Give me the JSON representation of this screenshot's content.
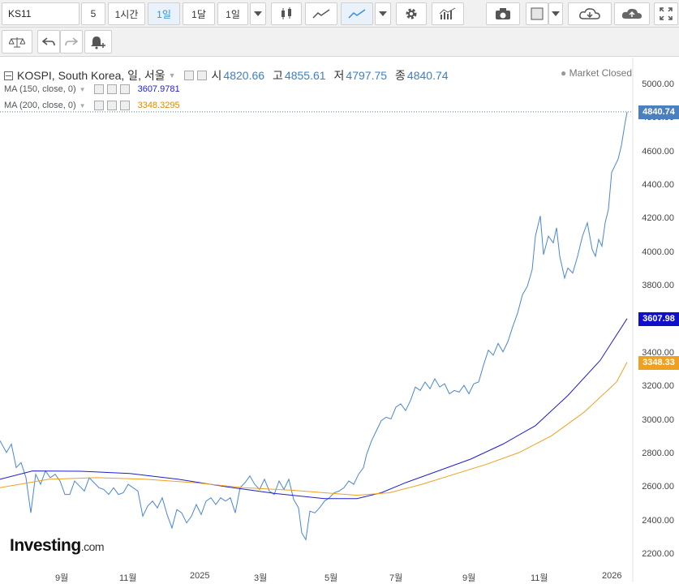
{
  "toolbar": {
    "symbol": "KS11",
    "intervals": [
      "5",
      "1시간",
      "1일",
      "1달",
      "1일"
    ],
    "active_interval": "1일"
  },
  "legend": {
    "title": "KOSPI, South Korea, 일, 서울",
    "open_label": "시",
    "open": "4820.66",
    "high_label": "고",
    "high": "4855.61",
    "low_label": "저",
    "low": "4797.75",
    "close_label": "종",
    "close": "4840.74",
    "ma150_label": "MA (150, close, 0)",
    "ma150_value": "3607.9781",
    "ma200_label": "MA (200, close, 0)",
    "ma200_value": "3348.3295",
    "market_status": "Market Closed"
  },
  "axis": {
    "y_labels": [
      "5000.00",
      "4800.00",
      "4600.00",
      "4400.00",
      "4200.00",
      "4000.00",
      "3800.00",
      "3600.00",
      "3400.00",
      "3200.00",
      "3000.00",
      "2800.00",
      "2600.00",
      "2400.00",
      "2200.00"
    ],
    "x_labels": [
      "9월",
      "11월",
      "2025",
      "3월",
      "5월",
      "7월",
      "9월",
      "11월",
      "2026"
    ]
  },
  "tags": {
    "price": "4840.74",
    "ma150": "3607.98",
    "ma200": "3348.33"
  },
  "colors": {
    "price": "#4a86d6",
    "ma150": "#1f1fcc",
    "ma200": "#f0a020",
    "tag_price": "#4a7fc0",
    "tag_ma150": "#1010cc",
    "tag_ma200": "#f0a020"
  },
  "chart_data": {
    "type": "line",
    "ylim": [
      2150,
      5100
    ],
    "series": [
      {
        "name": "KOSPI",
        "points": [
          [
            0,
            2880
          ],
          [
            8,
            2810
          ],
          [
            14,
            2860
          ],
          [
            20,
            2720
          ],
          [
            26,
            2750
          ],
          [
            32,
            2660
          ],
          [
            38,
            2450
          ],
          [
            44,
            2680
          ],
          [
            50,
            2620
          ],
          [
            56,
            2700
          ],
          [
            62,
            2660
          ],
          [
            68,
            2680
          ],
          [
            74,
            2640
          ],
          [
            80,
            2560
          ],
          [
            86,
            2560
          ],
          [
            92,
            2640
          ],
          [
            98,
            2610
          ],
          [
            104,
            2580
          ],
          [
            110,
            2660
          ],
          [
            116,
            2630
          ],
          [
            122,
            2600
          ],
          [
            128,
            2590
          ],
          [
            134,
            2560
          ],
          [
            140,
            2600
          ],
          [
            146,
            2560
          ],
          [
            152,
            2570
          ],
          [
            158,
            2620
          ],
          [
            164,
            2600
          ],
          [
            170,
            2580
          ],
          [
            176,
            2430
          ],
          [
            182,
            2490
          ],
          [
            188,
            2520
          ],
          [
            194,
            2480
          ],
          [
            200,
            2540
          ],
          [
            206,
            2440
          ],
          [
            212,
            2360
          ],
          [
            218,
            2470
          ],
          [
            224,
            2450
          ],
          [
            230,
            2390
          ],
          [
            236,
            2430
          ],
          [
            242,
            2500
          ],
          [
            248,
            2440
          ],
          [
            254,
            2520
          ],
          [
            260,
            2540
          ],
          [
            266,
            2500
          ],
          [
            272,
            2540
          ],
          [
            278,
            2520
          ],
          [
            284,
            2540
          ],
          [
            290,
            2450
          ],
          [
            296,
            2600
          ],
          [
            302,
            2630
          ],
          [
            308,
            2670
          ],
          [
            314,
            2620
          ],
          [
            320,
            2590
          ],
          [
            326,
            2650
          ],
          [
            332,
            2580
          ],
          [
            338,
            2560
          ],
          [
            344,
            2640
          ],
          [
            350,
            2590
          ],
          [
            356,
            2650
          ],
          [
            362,
            2530
          ],
          [
            368,
            2480
          ],
          [
            372,
            2330
          ],
          [
            377,
            2290
          ],
          [
            382,
            2460
          ],
          [
            388,
            2450
          ],
          [
            394,
            2480
          ],
          [
            400,
            2520
          ],
          [
            406,
            2540
          ],
          [
            412,
            2570
          ],
          [
            418,
            2580
          ],
          [
            424,
            2600
          ],
          [
            430,
            2640
          ],
          [
            436,
            2620
          ],
          [
            442,
            2680
          ],
          [
            448,
            2720
          ],
          [
            452,
            2800
          ],
          [
            458,
            2880
          ],
          [
            464,
            2940
          ],
          [
            470,
            3000
          ],
          [
            476,
            3020
          ],
          [
            482,
            3010
          ],
          [
            488,
            3080
          ],
          [
            494,
            3100
          ],
          [
            500,
            3060
          ],
          [
            506,
            3120
          ],
          [
            512,
            3200
          ],
          [
            518,
            3180
          ],
          [
            524,
            3230
          ],
          [
            530,
            3190
          ],
          [
            536,
            3250
          ],
          [
            542,
            3200
          ],
          [
            548,
            3220
          ],
          [
            554,
            3160
          ],
          [
            560,
            3180
          ],
          [
            566,
            3170
          ],
          [
            572,
            3210
          ],
          [
            578,
            3160
          ],
          [
            584,
            3220
          ],
          [
            590,
            3230
          ],
          [
            596,
            3330
          ],
          [
            602,
            3420
          ],
          [
            608,
            3390
          ],
          [
            614,
            3460
          ],
          [
            620,
            3410
          ],
          [
            626,
            3470
          ],
          [
            632,
            3560
          ],
          [
            638,
            3640
          ],
          [
            644,
            3750
          ],
          [
            650,
            3800
          ],
          [
            656,
            3900
          ],
          [
            660,
            4100
          ],
          [
            666,
            4220
          ],
          [
            670,
            3990
          ],
          [
            676,
            4100
          ],
          [
            682,
            4060
          ],
          [
            686,
            4150
          ],
          [
            690,
            3980
          ],
          [
            696,
            3850
          ],
          [
            700,
            3910
          ],
          [
            706,
            3880
          ],
          [
            712,
            3980
          ],
          [
            718,
            4100
          ],
          [
            724,
            4180
          ],
          [
            730,
            4020
          ],
          [
            734,
            3980
          ],
          [
            738,
            4080
          ],
          [
            742,
            4040
          ],
          [
            746,
            4180
          ],
          [
            750,
            4260
          ],
          [
            754,
            4480
          ],
          [
            758,
            4520
          ],
          [
            762,
            4560
          ],
          [
            766,
            4640
          ],
          [
            770,
            4760
          ],
          [
            773,
            4840
          ]
        ]
      },
      {
        "name": "MA (150, close, 0)",
        "points": [
          [
            0,
            2650
          ],
          [
            40,
            2700
          ],
          [
            100,
            2698
          ],
          [
            160,
            2685
          ],
          [
            220,
            2650
          ],
          [
            280,
            2605
          ],
          [
            340,
            2565
          ],
          [
            400,
            2535
          ],
          [
            440,
            2535
          ],
          [
            470,
            2570
          ],
          [
            500,
            2630
          ],
          [
            540,
            2700
          ],
          [
            580,
            2770
          ],
          [
            620,
            2860
          ],
          [
            660,
            2970
          ],
          [
            700,
            3150
          ],
          [
            740,
            3360
          ],
          [
            773,
            3608
          ]
        ]
      },
      {
        "name": "MA (200, close, 0)",
        "points": [
          [
            0,
            2600
          ],
          [
            60,
            2650
          ],
          [
            120,
            2660
          ],
          [
            180,
            2650
          ],
          [
            240,
            2630
          ],
          [
            300,
            2600
          ],
          [
            360,
            2585
          ],
          [
            400,
            2570
          ],
          [
            440,
            2555
          ],
          [
            480,
            2570
          ],
          [
            520,
            2620
          ],
          [
            560,
            2680
          ],
          [
            600,
            2740
          ],
          [
            640,
            2810
          ],
          [
            680,
            2910
          ],
          [
            720,
            3050
          ],
          [
            760,
            3230
          ],
          [
            773,
            3348
          ]
        ]
      }
    ]
  }
}
